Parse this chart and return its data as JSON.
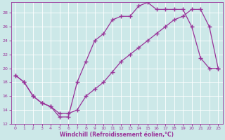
{
  "xlabel": "Windchill (Refroidissement éolien,°C)",
  "bg_color": "#cce8e8",
  "grid_color": "#ffffff",
  "line_color": "#993399",
  "xlim": [
    -0.5,
    23.5
  ],
  "ylim": [
    12,
    29.5
  ],
  "xticks": [
    0,
    1,
    2,
    3,
    4,
    5,
    6,
    7,
    8,
    9,
    10,
    11,
    12,
    13,
    14,
    15,
    16,
    17,
    18,
    19,
    20,
    21,
    22,
    23
  ],
  "yticks": [
    12,
    14,
    16,
    18,
    20,
    22,
    24,
    26,
    28
  ],
  "curve1_x": [
    0,
    1,
    2,
    3,
    4,
    5,
    6,
    7,
    8,
    9,
    10,
    11,
    12,
    13,
    14,
    15,
    16,
    17,
    18,
    19,
    20,
    21,
    22,
    23
  ],
  "curve1_y": [
    19,
    18,
    16,
    15,
    14.5,
    13,
    13,
    18,
    21,
    24,
    25,
    27,
    27.5,
    27.5,
    29,
    29.5,
    28.5,
    28.5,
    28.5,
    28.5,
    26,
    21.5,
    20,
    20
  ],
  "curve2_x": [
    0,
    1,
    2,
    3,
    4,
    5,
    6,
    7,
    8,
    9,
    10,
    11,
    12,
    13,
    14,
    15,
    16,
    17,
    18,
    19,
    20,
    21,
    22,
    23
  ],
  "curve2_y": [
    19,
    18,
    16,
    15,
    14.5,
    13.5,
    13.5,
    14,
    16,
    17,
    18,
    19.5,
    21,
    22,
    23,
    24,
    25,
    26,
    27,
    27.5,
    28.5,
    28.5,
    26,
    20
  ],
  "marker": "+",
  "marker_size": 4,
  "linewidth": 0.9
}
